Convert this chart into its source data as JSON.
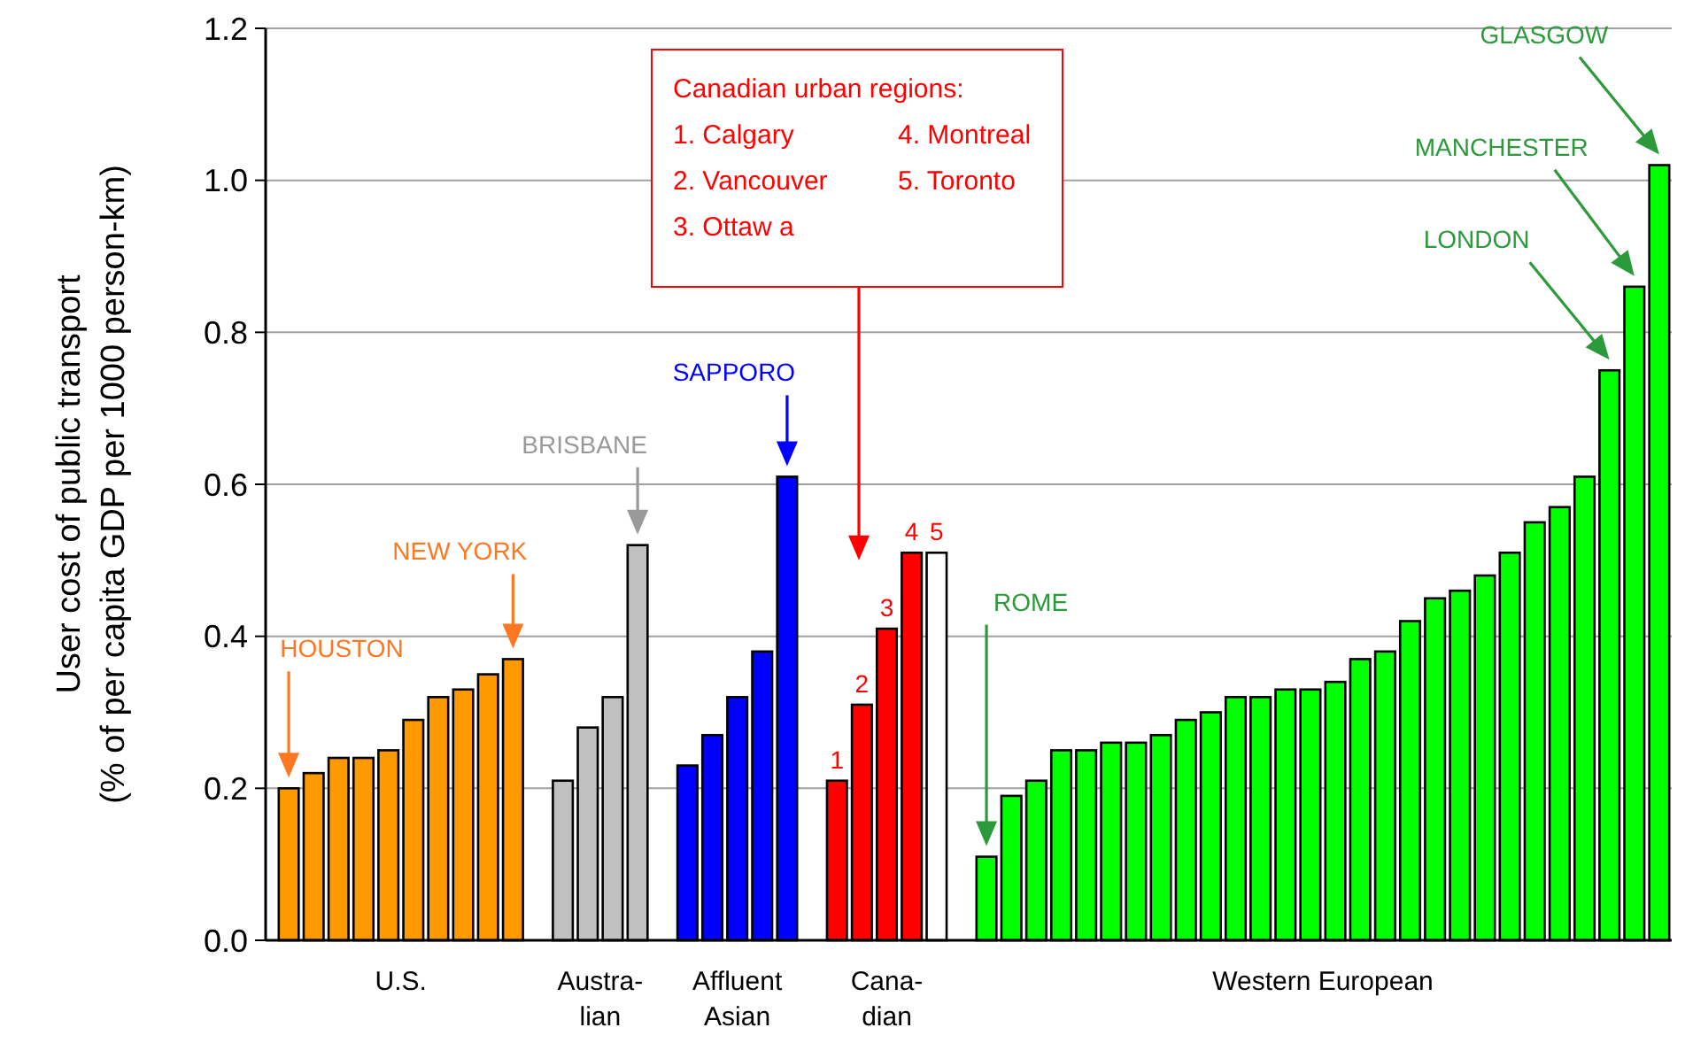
{
  "chart_data": {
    "type": "bar",
    "ylabel": "User cost of public transport\n(% of per capita GDP per 1000 person-km)",
    "categories": [
      null,
      null,
      null,
      null,
      null,
      null,
      null,
      null,
      null,
      null,
      null,
      null,
      null,
      null,
      null,
      null,
      null,
      null,
      null,
      null,
      null,
      null,
      null,
      null,
      null,
      null,
      null,
      null,
      null,
      null,
      null,
      null,
      null,
      null,
      null,
      null,
      null,
      null,
      null,
      null,
      null,
      null,
      null,
      null,
      null,
      null,
      null,
      null,
      null,
      null,
      null,
      null,
      null,
      null,
      null,
      null
    ],
    "series": [
      {
        "color": "#ff9900",
        "values": [
          0.2,
          0.22,
          0.24,
          0.24,
          0.25,
          0.29,
          0.32,
          0.33,
          0.35,
          0.37,
          null,
          null,
          null,
          null,
          null,
          null,
          null,
          null,
          null,
          null,
          null,
          null,
          null,
          null,
          null,
          null,
          null,
          null,
          null,
          null,
          null,
          null,
          null,
          null,
          null,
          null,
          null,
          null,
          null,
          null,
          null,
          null,
          null,
          null,
          null,
          null,
          null,
          null,
          null,
          null,
          null,
          null,
          null,
          null,
          null,
          null
        ]
      },
      {
        "color": "#c0c0c0",
        "values": [
          null,
          null,
          null,
          null,
          null,
          null,
          null,
          null,
          null,
          null,
          null,
          0.21,
          0.28,
          0.32,
          0.52,
          null,
          null,
          null,
          null,
          null,
          null,
          null,
          null,
          null,
          null,
          null,
          null,
          null,
          null,
          null,
          null,
          null,
          null,
          null,
          null,
          null,
          null,
          null,
          null,
          null,
          null,
          null,
          null,
          null,
          null,
          null,
          null,
          null,
          null,
          null,
          null,
          null,
          null,
          null,
          null,
          null
        ]
      },
      {
        "color": "#0000ff",
        "values": [
          null,
          null,
          null,
          null,
          null,
          null,
          null,
          null,
          null,
          null,
          null,
          null,
          null,
          null,
          null,
          null,
          0.23,
          0.27,
          0.32,
          0.38,
          0.61,
          null,
          null,
          null,
          null,
          null,
          null,
          null,
          null,
          null,
          null,
          null,
          null,
          null,
          null,
          null,
          null,
          null,
          null,
          null,
          null,
          null,
          null,
          null,
          null,
          null,
          null,
          null,
          null,
          null,
          null,
          null,
          null,
          null,
          null,
          null
        ]
      },
      {
        "color": "#ff0000",
        "colors": [
          null,
          null,
          null,
          null,
          null,
          null,
          null,
          null,
          null,
          null,
          null,
          null,
          null,
          null,
          null,
          null,
          null,
          null,
          null,
          null,
          null,
          null,
          "#ff0000",
          "#ff0000",
          "#ff0000",
          "#ff0000",
          "#ffffff",
          null,
          null,
          null,
          null,
          null,
          null,
          null,
          null,
          null,
          null,
          null,
          null,
          null,
          null,
          null,
          null,
          null,
          null,
          null,
          null,
          null,
          null,
          null,
          null,
          null,
          null,
          null,
          null,
          null
        ],
        "values": [
          null,
          null,
          null,
          null,
          null,
          null,
          null,
          null,
          null,
          null,
          null,
          null,
          null,
          null,
          null,
          null,
          null,
          null,
          null,
          null,
          null,
          null,
          0.21,
          0.31,
          0.41,
          0.51,
          0.51,
          null,
          null,
          null,
          null,
          null,
          null,
          null,
          null,
          null,
          null,
          null,
          null,
          null,
          null,
          null,
          null,
          null,
          null,
          null,
          null,
          null,
          null,
          null,
          null,
          null,
          null,
          null,
          null,
          null
        ]
      },
      {
        "color": "#00ff00",
        "values": [
          null,
          null,
          null,
          null,
          null,
          null,
          null,
          null,
          null,
          null,
          null,
          null,
          null,
          null,
          null,
          null,
          null,
          null,
          null,
          null,
          null,
          null,
          null,
          null,
          null,
          null,
          null,
          null,
          0.11,
          0.19,
          0.21,
          0.25,
          0.25,
          0.26,
          0.26,
          0.27,
          0.29,
          0.3,
          0.32,
          0.32,
          0.33,
          0.33,
          0.34,
          0.37,
          0.38,
          0.42,
          0.45,
          0.46,
          0.48,
          0.51,
          0.55,
          0.57,
          0.61,
          0.75,
          0.86,
          1.02
        ]
      }
    ],
    "ylim": [
      0,
      1.2
    ],
    "yticks": [
      {
        "value": 0,
        "label": "0.0"
      },
      {
        "value": 0.2,
        "label": "0.2"
      },
      {
        "value": 0.4,
        "label": "0.4"
      },
      {
        "value": 0.6,
        "label": "0.6"
      },
      {
        "value": 0.8,
        "label": "0.8"
      },
      {
        "value": 1,
        "label": "1.0"
      },
      {
        "value": 1.2,
        "label": "1.2"
      }
    ],
    "grid": "y",
    "annotations": [
      "U.S.",
      "Austra-\nlian",
      "Affluent\nAsian",
      "Cana-\ndian",
      "Western European",
      "Canadian urban regions:",
      "1. Calgary",
      "2. Vancouver",
      "3. Ottaw a",
      "4. Montreal",
      "5. Toronto",
      "HOUSTON",
      "NEW YORK",
      "BRISBANE",
      "SAPPORO",
      "ROME",
      "LONDON",
      "MANCHESTER",
      "GLASGOW",
      "1",
      "2",
      "3",
      "4",
      "5"
    ]
  }
}
